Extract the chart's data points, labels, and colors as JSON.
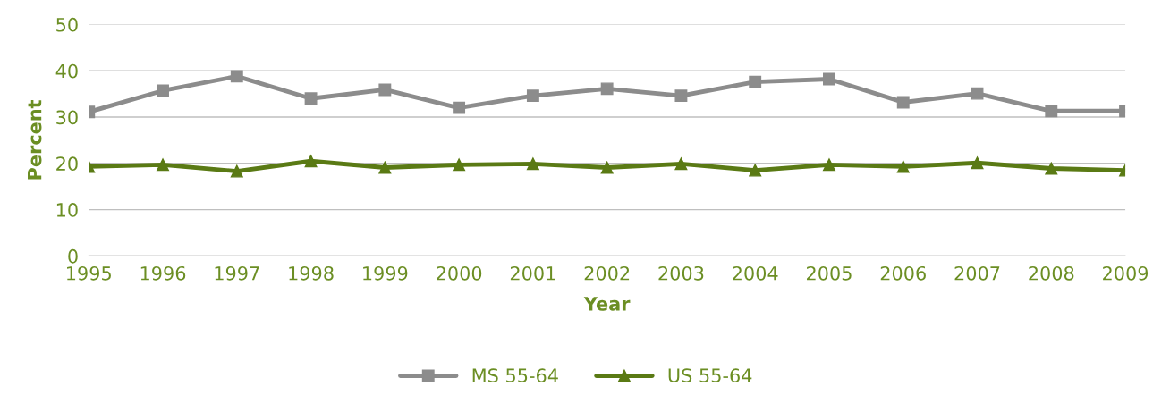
{
  "chart_data": {
    "type": "line",
    "xlabel": "Year",
    "ylabel": "Percent",
    "categories": [
      "1995",
      "1996",
      "1997",
      "1998",
      "1999",
      "2000",
      "2001",
      "2002",
      "2003",
      "2004",
      "2005",
      "2006",
      "2007",
      "2008",
      "2009"
    ],
    "series": [
      {
        "name": "MS 55-64",
        "color": "#8c8c8c",
        "marker": "square",
        "values": [
          31.1,
          35.7,
          38.8,
          34.0,
          35.9,
          32.0,
          34.6,
          36.1,
          34.6,
          37.6,
          38.2,
          33.2,
          35.1,
          31.3,
          31.3
        ]
      },
      {
        "name": "US 55-64",
        "color": "#5a7a14",
        "marker": "triangle",
        "values": [
          19.3,
          19.7,
          18.3,
          20.5,
          19.1,
          19.7,
          19.9,
          19.1,
          19.9,
          18.5,
          19.7,
          19.3,
          20.1,
          18.9,
          18.5
        ]
      }
    ],
    "ylim": [
      0,
      50
    ],
    "yticks": [
      0,
      10,
      20,
      30,
      40,
      50
    ],
    "grid": "y",
    "legend": "bottom",
    "line_style": "solid"
  }
}
